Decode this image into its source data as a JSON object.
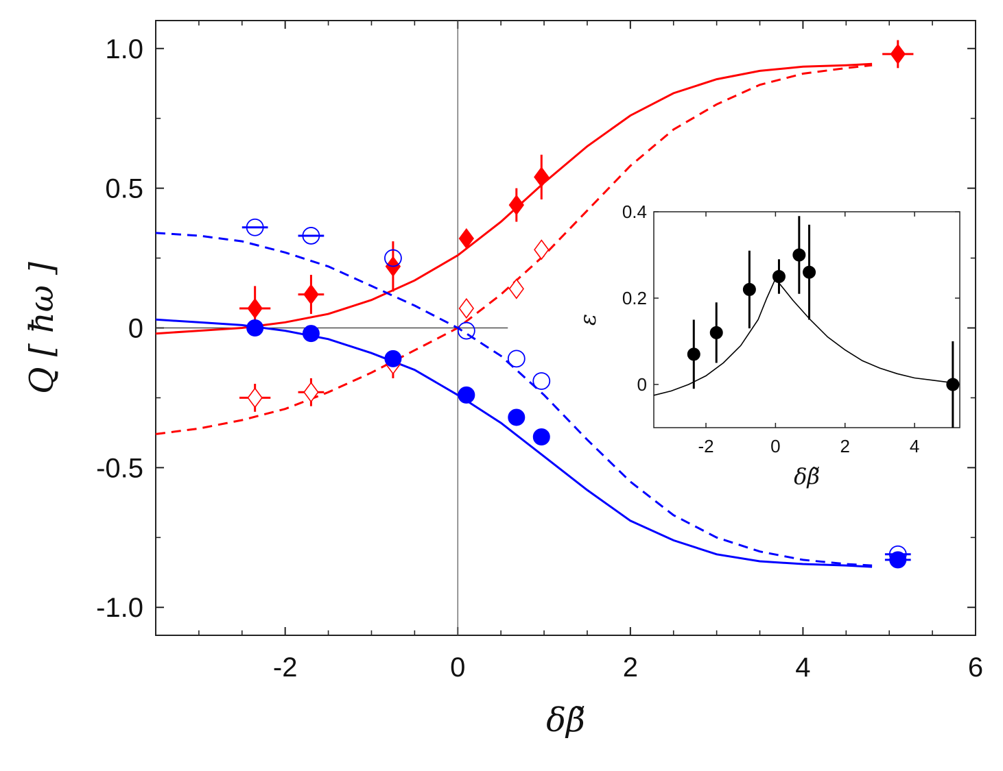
{
  "chart_data": [
    {
      "type": "scatter",
      "title": "",
      "xlabel": "δβ̃",
      "ylabel": "Q [ ħω ]",
      "xlim": [
        -3.5,
        6
      ],
      "ylim": [
        -1.1,
        1.1
      ],
      "xticks": [
        -2,
        0,
        2,
        4,
        6
      ],
      "xtick_labels": [
        "-2",
        "0",
        "2",
        "4",
        "6"
      ],
      "yticks": [
        -1.0,
        -0.5,
        0,
        0.5,
        1.0
      ],
      "ytick_labels": [
        "-1.0",
        "-0.5",
        "0",
        "0.5",
        "1.0"
      ],
      "grid": false,
      "series": [
        {
          "name": "red filled diamonds",
          "color": "#ff0000",
          "marker": "diamond-filled",
          "x": [
            -2.35,
            -1.7,
            -0.75,
            0.1,
            0.68,
            0.97,
            5.1
          ],
          "y": [
            0.07,
            0.12,
            0.22,
            0.32,
            0.44,
            0.54,
            0.98
          ],
          "yerr": [
            0.08,
            0.07,
            0.09,
            0.02,
            0.06,
            0.08,
            0.05
          ],
          "xerr": [
            0.18,
            0.15,
            0,
            0,
            0,
            0,
            0.18
          ]
        },
        {
          "name": "red open diamonds",
          "color": "#ff0000",
          "marker": "diamond-open",
          "x": [
            -2.35,
            -1.7,
            -0.75,
            0.1,
            0.68,
            0.97
          ],
          "y": [
            -0.25,
            -0.23,
            -0.13,
            0.07,
            0.14,
            0.28
          ],
          "yerr": [
            0.05,
            0.05,
            0.05,
            0,
            0,
            0
          ],
          "xerr": [
            0.18,
            0.15,
            0,
            0,
            0,
            0
          ]
        },
        {
          "name": "blue filled circles",
          "color": "#0000ff",
          "marker": "circle-filled",
          "x": [
            -2.35,
            -1.7,
            -0.75,
            0.1,
            0.68,
            0.97,
            5.1
          ],
          "y": [
            0.0,
            -0.02,
            -0.11,
            -0.24,
            -0.32,
            -0.39,
            -0.83
          ],
          "xerr": [
            0,
            0,
            0,
            0,
            0,
            0,
            0.15
          ]
        },
        {
          "name": "blue open circles",
          "color": "#0000ff",
          "marker": "circle-open",
          "x": [
            -2.35,
            -1.7,
            -0.75,
            0.1,
            0.68,
            0.97,
            5.1
          ],
          "y": [
            0.36,
            0.33,
            0.25,
            -0.01,
            -0.11,
            -0.19,
            -0.81
          ],
          "xerr": [
            0.15,
            0.15,
            0,
            0,
            0,
            0,
            0.15
          ]
        },
        {
          "name": "red solid fit",
          "color": "#ff0000",
          "style": "solid",
          "type": "line",
          "x": [
            -3.5,
            -3.0,
            -2.5,
            -2.0,
            -1.5,
            -1.0,
            -0.5,
            0.0,
            0.5,
            1.0,
            1.5,
            2.0,
            2.5,
            3.0,
            3.5,
            4.0,
            4.5,
            4.8
          ],
          "y": [
            -0.02,
            -0.01,
            0.0,
            0.02,
            0.05,
            0.1,
            0.17,
            0.26,
            0.38,
            0.52,
            0.65,
            0.76,
            0.84,
            0.89,
            0.92,
            0.935,
            0.94,
            0.945
          ]
        },
        {
          "name": "red dashed fit",
          "color": "#ff0000",
          "style": "dashed",
          "type": "line",
          "x": [
            -3.5,
            -3.0,
            -2.5,
            -2.0,
            -1.5,
            -1.0,
            -0.5,
            0.0,
            0.5,
            1.0,
            1.5,
            2.0,
            2.5,
            3.0,
            3.5,
            4.0,
            4.5,
            4.8
          ],
          "y": [
            -0.38,
            -0.36,
            -0.33,
            -0.29,
            -0.23,
            -0.16,
            -0.08,
            0.0,
            0.12,
            0.26,
            0.42,
            0.58,
            0.71,
            0.8,
            0.87,
            0.91,
            0.93,
            0.94
          ]
        },
        {
          "name": "blue solid fit",
          "color": "#0000ff",
          "style": "solid",
          "type": "line",
          "x": [
            -3.5,
            -3.0,
            -2.5,
            -2.0,
            -1.5,
            -1.0,
            -0.5,
            0.0,
            0.5,
            1.0,
            1.5,
            2.0,
            2.5,
            3.0,
            3.5,
            4.0,
            4.5,
            4.8
          ],
          "y": [
            0.03,
            0.02,
            0.01,
            -0.01,
            -0.04,
            -0.09,
            -0.15,
            -0.24,
            -0.34,
            -0.46,
            -0.58,
            -0.69,
            -0.76,
            -0.81,
            -0.835,
            -0.845,
            -0.85,
            -0.855
          ]
        },
        {
          "name": "blue dashed fit",
          "color": "#0000ff",
          "style": "dashed",
          "type": "line",
          "x": [
            -3.5,
            -3.0,
            -2.5,
            -2.0,
            -1.5,
            -1.0,
            -0.5,
            0.0,
            0.5,
            1.0,
            1.5,
            2.0,
            2.5,
            3.0,
            3.5,
            4.0,
            4.5,
            4.8
          ],
          "y": [
            0.34,
            0.33,
            0.31,
            0.27,
            0.22,
            0.15,
            0.08,
            0.0,
            -0.1,
            -0.24,
            -0.4,
            -0.55,
            -0.67,
            -0.75,
            -0.8,
            -0.83,
            -0.845,
            -0.85
          ]
        }
      ]
    },
    {
      "type": "scatter",
      "title": "",
      "xlabel": "δβ̃",
      "ylabel": "ε",
      "xlim": [
        -3.5,
        5.3
      ],
      "ylim": [
        -0.1,
        0.4
      ],
      "xticks": [
        -2,
        0,
        2,
        4
      ],
      "xtick_labels": [
        "-2",
        "0",
        "2",
        "4"
      ],
      "yticks": [
        0,
        0.2,
        0.4
      ],
      "ytick_labels": [
        "0",
        "0.2",
        "0.4"
      ],
      "legend_position": "inset right",
      "series": [
        {
          "name": "efficiency data",
          "color": "#000000",
          "marker": "circle-filled",
          "x": [
            -2.35,
            -1.7,
            -0.75,
            0.1,
            0.68,
            0.97,
            5.1
          ],
          "y": [
            0.07,
            0.12,
            0.22,
            0.25,
            0.3,
            0.26,
            0.0
          ],
          "yerr": [
            0.08,
            0.07,
            0.09,
            0.04,
            0.09,
            0.11,
            0.1
          ]
        },
        {
          "name": "efficiency theory",
          "color": "#000000",
          "style": "solid",
          "type": "line",
          "x": [
            -3.5,
            -3.0,
            -2.5,
            -2.0,
            -1.5,
            -1.0,
            -0.5,
            -0.25,
            0.0,
            0.25,
            0.5,
            1.0,
            1.5,
            2.0,
            2.5,
            3.0,
            3.5,
            4.0,
            4.5,
            5.0
          ],
          "y": [
            -0.025,
            -0.015,
            0.0,
            0.02,
            0.05,
            0.09,
            0.15,
            0.2,
            0.245,
            0.22,
            0.195,
            0.15,
            0.11,
            0.08,
            0.055,
            0.038,
            0.025,
            0.015,
            0.01,
            0.005
          ]
        }
      ]
    }
  ]
}
